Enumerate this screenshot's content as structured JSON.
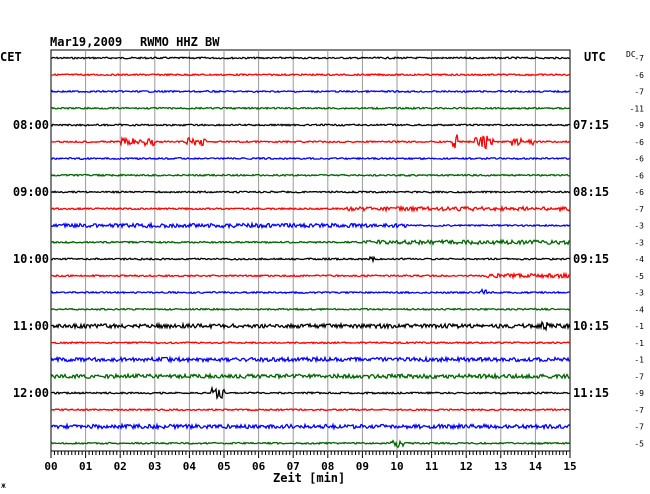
{
  "header": {
    "date": "Mar19,2009",
    "station": "RWMO HHZ BW"
  },
  "left_zone": "CET",
  "right_zone": "UTC",
  "dc_label": "DC",
  "corner_mark": "ж",
  "chart_data": {
    "type": "line",
    "title": "Mar19,2009  RWMO HHZ BW",
    "xlabel": "Zeit [min]",
    "x_ticks": [
      "00",
      "01",
      "02",
      "03",
      "04",
      "05",
      "06",
      "07",
      "08",
      "09",
      "10",
      "11",
      "12",
      "13",
      "14",
      "15"
    ],
    "xlim": [
      0,
      15
    ],
    "series_colors": [
      "#000000",
      "#ff0000",
      "#0000ff",
      "#006400"
    ],
    "left_time_labels": [
      {
        "row": 4,
        "text": "08:00"
      },
      {
        "row": 8,
        "text": "09:00"
      },
      {
        "row": 12,
        "text": "10:00"
      },
      {
        "row": 16,
        "text": "11:00"
      },
      {
        "row": 20,
        "text": "12:00"
      }
    ],
    "right_time_labels": [
      {
        "row": 4,
        "text": "07:15"
      },
      {
        "row": 8,
        "text": "08:15"
      },
      {
        "row": 12,
        "text": "09:15"
      },
      {
        "row": 16,
        "text": "10:15"
      },
      {
        "row": 20,
        "text": "11:15"
      }
    ],
    "dc_offsets": [
      "-7",
      "-6",
      "-7",
      "-11",
      "-9",
      "-6",
      "-6",
      "-6",
      "-6",
      "-7",
      "-3",
      "-3",
      "-4",
      "-5",
      "-3",
      "-4",
      "-1",
      "-1",
      "-1",
      "-7",
      "-9",
      "-7",
      "-7",
      "-5"
    ],
    "events": [
      {
        "row": 5,
        "start": 2.0,
        "end": 3.0,
        "amp": 4
      },
      {
        "row": 5,
        "start": 3.9,
        "end": 4.5,
        "amp": 4
      },
      {
        "row": 5,
        "start": 11.6,
        "end": 11.75,
        "amp": 9
      },
      {
        "row": 5,
        "start": 12.2,
        "end": 12.8,
        "amp": 7
      },
      {
        "row": 5,
        "start": 13.3,
        "end": 13.6,
        "amp": 4
      },
      {
        "row": 5,
        "start": 13.8,
        "end": 13.95,
        "amp": 3
      },
      {
        "row": 9,
        "start": 8.5,
        "end": 15.0,
        "amp": 2
      },
      {
        "row": 10,
        "start": 0.0,
        "end": 10.3,
        "amp": 2
      },
      {
        "row": 11,
        "start": 9.0,
        "end": 15.0,
        "amp": 2
      },
      {
        "row": 12,
        "start": 9.2,
        "end": 9.35,
        "amp": 3
      },
      {
        "row": 13,
        "start": 12.6,
        "end": 15.0,
        "amp": 2
      },
      {
        "row": 14,
        "start": 12.4,
        "end": 12.6,
        "amp": 3
      },
      {
        "row": 16,
        "start": 0.0,
        "end": 15.0,
        "amp": 2
      },
      {
        "row": 16,
        "start": 14.1,
        "end": 14.35,
        "amp": 4
      },
      {
        "row": 18,
        "start": 0.0,
        "end": 15.0,
        "amp": 2
      },
      {
        "row": 19,
        "start": 0.0,
        "end": 15.0,
        "amp": 2
      },
      {
        "row": 20,
        "start": 4.6,
        "end": 5.0,
        "amp": 5
      },
      {
        "row": 22,
        "start": 0.0,
        "end": 15.0,
        "amp": 2
      },
      {
        "row": 23,
        "start": 9.8,
        "end": 10.2,
        "amp": 4
      }
    ]
  }
}
